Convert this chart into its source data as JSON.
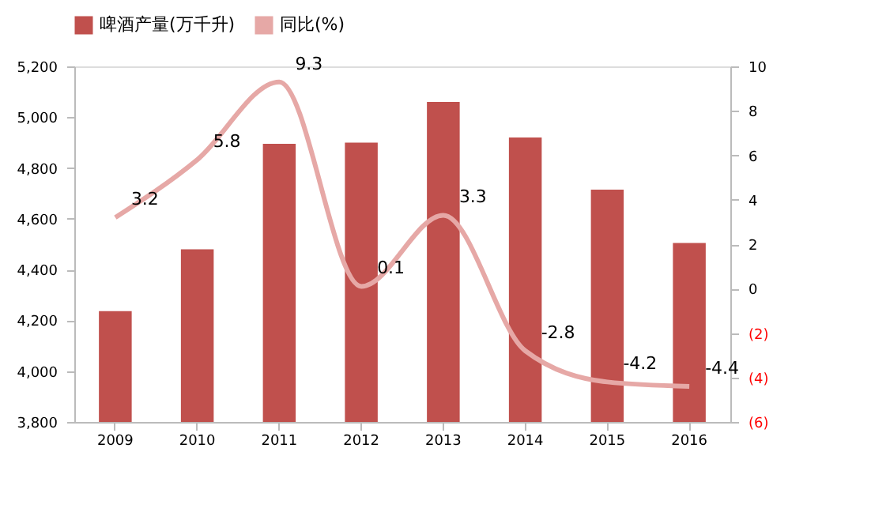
{
  "chart_data": {
    "type": "bar",
    "categories": [
      "2009",
      "2010",
      "2011",
      "2012",
      "2013",
      "2014",
      "2015",
      "2016"
    ],
    "series": [
      {
        "name": "啤酒产量(万千升)",
        "color": "#c0504d",
        "values": [
          4236,
          4480,
          4895,
          4900,
          5060,
          4920,
          4715,
          4505
        ]
      },
      {
        "name": "同比(%)",
        "type": "line",
        "axis": "y2",
        "color": "#e6a8a6",
        "values": [
          3.2,
          5.8,
          9.3,
          0.1,
          3.3,
          -2.8,
          -4.2,
          -4.4
        ],
        "value_labels": [
          "3.2",
          "5.8",
          "9.3",
          "0.1",
          "3.3",
          "-2.8",
          "-4.2",
          "-4.4"
        ]
      }
    ],
    "ylim": [
      3800,
      5200
    ],
    "yticks": [
      {
        "value": 3800,
        "label": "3,800"
      },
      {
        "value": 4000,
        "label": "4,000"
      },
      {
        "value": 4200,
        "label": "4,200"
      },
      {
        "value": 4400,
        "label": "4,400"
      },
      {
        "value": 4600,
        "label": "4,600"
      },
      {
        "value": 4800,
        "label": "4,800"
      },
      {
        "value": 5000,
        "label": "5,000"
      },
      {
        "value": 5200,
        "label": "5,200"
      }
    ],
    "y2lim": [
      -6,
      10
    ],
    "y2ticks": [
      {
        "value": -6,
        "label": "(6)"
      },
      {
        "value": -4,
        "label": "(4)"
      },
      {
        "value": -2,
        "label": "(2)"
      },
      0,
      2,
      4,
      6,
      8,
      10
    ],
    "grid": false,
    "legend": "top",
    "marker": "none",
    "line_style": "solid"
  }
}
